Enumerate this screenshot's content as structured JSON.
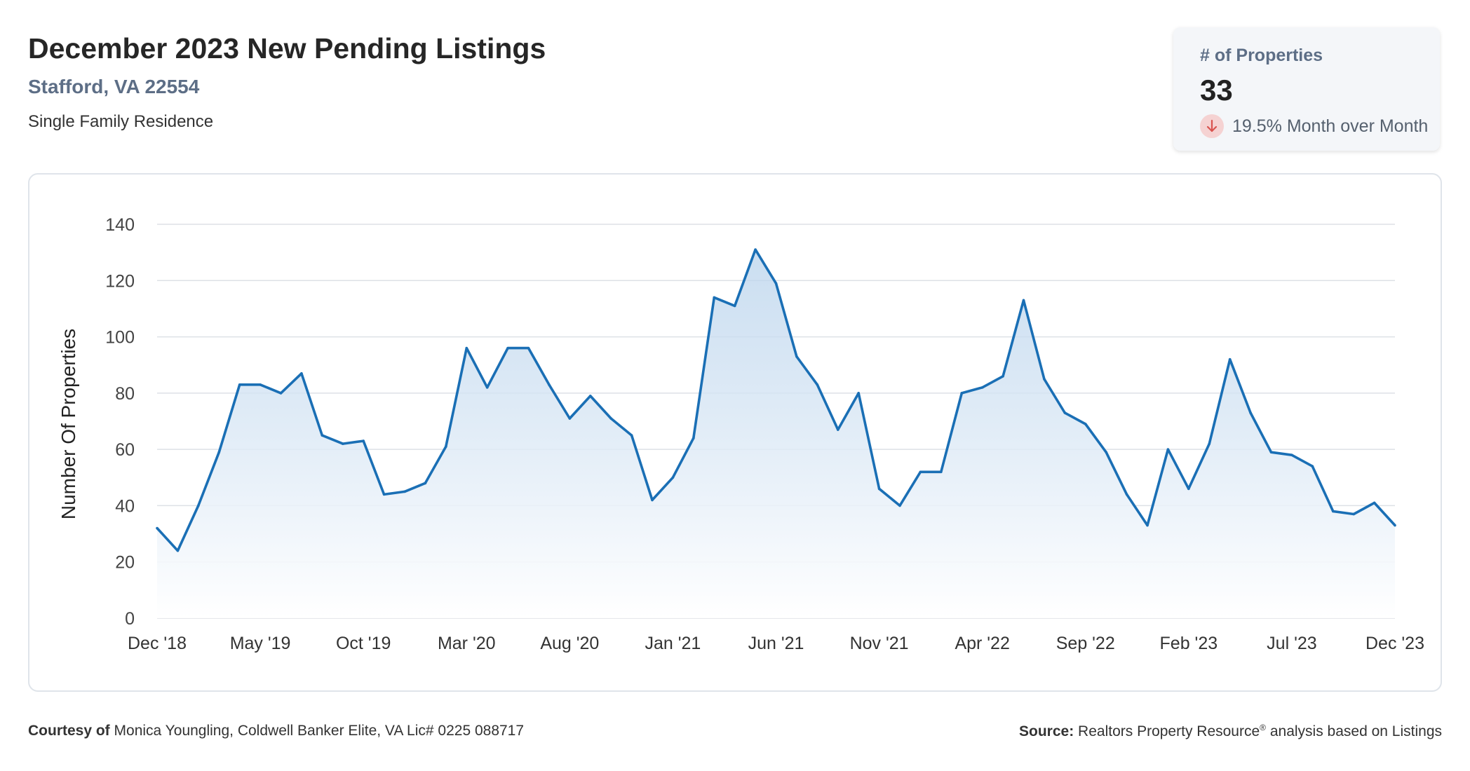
{
  "header": {
    "title": "December 2023 New Pending Listings",
    "location": "Stafford, VA 22554",
    "property_type": "Single Family Residence"
  },
  "kpi": {
    "label": "# of Properties",
    "value": "33",
    "change": "19.5% Month over Month",
    "direction": "down",
    "icon": "arrow-down-icon",
    "badge_color": "#f5d2d2",
    "arrow_color": "#d9534f"
  },
  "footer": {
    "courtesy_label": "Courtesy of",
    "courtesy_text": "Monica Youngling, Coldwell Banker Elite, VA Lic# 0225 088717",
    "source_label": "Source:",
    "source_name": "Realtors Property Resource",
    "source_mark": "®",
    "source_text": "analysis based on Listings"
  },
  "chart_data": {
    "type": "area",
    "ylabel": "Number Of Properties",
    "xlabel": "",
    "ylim": [
      0,
      140
    ],
    "yticks": [
      0,
      20,
      40,
      60,
      80,
      100,
      120,
      140
    ],
    "grid": true,
    "line_color": "#1a6fb5",
    "fill_color": "#cfe2f3",
    "x": [
      "Dec '18",
      "Jan '19",
      "Feb '19",
      "Mar '19",
      "Apr '19",
      "May '19",
      "Jun '19",
      "Jul '19",
      "Aug '19",
      "Sep '19",
      "Oct '19",
      "Nov '19",
      "Dec '19",
      "Jan '20",
      "Feb '20",
      "Mar '20",
      "Apr '20",
      "May '20",
      "Jun '20",
      "Jul '20",
      "Aug '20",
      "Sep '20",
      "Oct '20",
      "Nov '20",
      "Dec '20",
      "Jan '21",
      "Feb '21",
      "Mar '21",
      "Apr '21",
      "May '21",
      "Jun '21",
      "Jul '21",
      "Aug '21",
      "Sep '21",
      "Oct '21",
      "Nov '21",
      "Dec '21",
      "Jan '22",
      "Feb '22",
      "Mar '22",
      "Apr '22",
      "May '22",
      "Jun '22",
      "Jul '22",
      "Aug '22",
      "Sep '22",
      "Oct '22",
      "Nov '22",
      "Dec '22",
      "Jan '23",
      "Feb '23",
      "Mar '23",
      "Apr '23",
      "May '23",
      "Jun '23",
      "Jul '23",
      "Aug '23",
      "Sep '23",
      "Oct '23",
      "Nov '23",
      "Dec '23"
    ],
    "xtick_labels": [
      "Dec '18",
      "May '19",
      "Oct '19",
      "Mar '20",
      "Aug '20",
      "Jan '21",
      "Jun '21",
      "Nov '21",
      "Apr '22",
      "Sep '22",
      "Feb '23",
      "Jul '23",
      "Dec '23"
    ],
    "series": [
      {
        "values": [
          32,
          24,
          40,
          59,
          83,
          83,
          80,
          87,
          65,
          62,
          63,
          44,
          45,
          48,
          61,
          96,
          82,
          96,
          96,
          83,
          71,
          79,
          71,
          65,
          42,
          50,
          64,
          114,
          111,
          131,
          119,
          93,
          83,
          67,
          80,
          46,
          40,
          52,
          52,
          80,
          82,
          86,
          113,
          85,
          73,
          69,
          59,
          44,
          33,
          60,
          46,
          62,
          92,
          73,
          59,
          58,
          54,
          38,
          37,
          41,
          33
        ]
      }
    ]
  }
}
